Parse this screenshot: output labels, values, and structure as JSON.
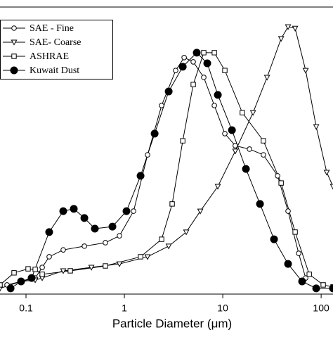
{
  "chart_data": {
    "type": "line",
    "x_label": "Particle Diameter (μm)",
    "xscale": "log",
    "xlim": [
      0.0544,
      132
    ],
    "ylim": [
      0,
      100
    ],
    "xticks": [
      0.1,
      1,
      10,
      100
    ],
    "legend": "upper left",
    "series": [
      {
        "name": "SAE - Fine",
        "color": "#000000",
        "marker": "circle-open",
        "x": [
          0.0641,
          0.0891,
          0.124,
          0.146,
          0.172,
          0.239,
          0.392,
          0.641,
          0.891,
          1.24,
          1.72,
          2.39,
          3.32,
          4.05,
          5.01,
          6.41,
          8.21,
          10.5,
          13.4,
          18.7,
          25.9,
          36.1,
          46.1,
          59.1,
          69.6
        ],
        "values": [
          3.2,
          4.4,
          5.6,
          9.3,
          13.0,
          15.4,
          16.7,
          17.9,
          20.3,
          28.9,
          48.5,
          65.7,
          77.9,
          82.4,
          80.9,
          75.5,
          65.7,
          55.9,
          51.7,
          50.5,
          48.5,
          41.2,
          28.9,
          14.2,
          5.6
        ]
      },
      {
        "name": "SAE- Coarse",
        "color": "#000000",
        "marker": "triangle-down-open",
        "x": [
          0.0544,
          0.0891,
          0.124,
          0.146,
          0.239,
          0.462,
          0.891,
          1.72,
          2.82,
          4.25,
          5.91,
          8.91,
          13.4,
          20.3,
          28.2,
          39.2,
          46.1,
          54.4,
          69.6,
          89.1,
          114,
          132
        ],
        "values": [
          2.0,
          4.4,
          4.9,
          5.6,
          8.1,
          9.3,
          10.5,
          13.0,
          16.7,
          21.6,
          28.9,
          37.5,
          49.8,
          63.2,
          75.5,
          89.0,
          93.1,
          92.6,
          77.9,
          58.3,
          42.4,
          37.5
        ]
      },
      {
        "name": "ASHRAE",
        "color": "#000000",
        "marker": "square-open",
        "x": [
          0.0544,
          0.0756,
          0.105,
          0.124,
          0.146,
          0.282,
          0.641,
          1.46,
          2.39,
          3.06,
          3.92,
          5.01,
          6.41,
          8.21,
          10.5,
          15.8,
          25.9,
          39.2,
          54.4,
          75.7,
          105,
          132
        ],
        "values": [
          3.2,
          7.4,
          8.8,
          8.6,
          6.9,
          8.1,
          9.8,
          13.0,
          19.1,
          31.4,
          53.4,
          73.0,
          84.1,
          84.1,
          77.9,
          63.2,
          53.4,
          38.7,
          21.6,
          6.9,
          3.2,
          2.5
        ]
      },
      {
        "name": "Kuwait Dust",
        "color": "#000000",
        "marker": "circle-filled",
        "x": [
          0.0697,
          0.0891,
          0.114,
          0.172,
          0.239,
          0.306,
          0.392,
          0.501,
          0.756,
          1.05,
          1.46,
          2.03,
          2.82,
          3.92,
          5.44,
          6.96,
          8.91,
          12.4,
          17.2,
          23.9,
          33.2,
          46.1,
          64.1,
          89.1,
          132
        ],
        "values": [
          2.0,
          4.4,
          5.6,
          21.6,
          28.9,
          29.7,
          26.5,
          22.8,
          23.5,
          28.9,
          41.2,
          55.9,
          70.6,
          79.2,
          84.1,
          80.4,
          69.4,
          57.1,
          43.6,
          31.4,
          19.1,
          10.5,
          4.4,
          2.0,
          2.0
        ]
      }
    ]
  }
}
